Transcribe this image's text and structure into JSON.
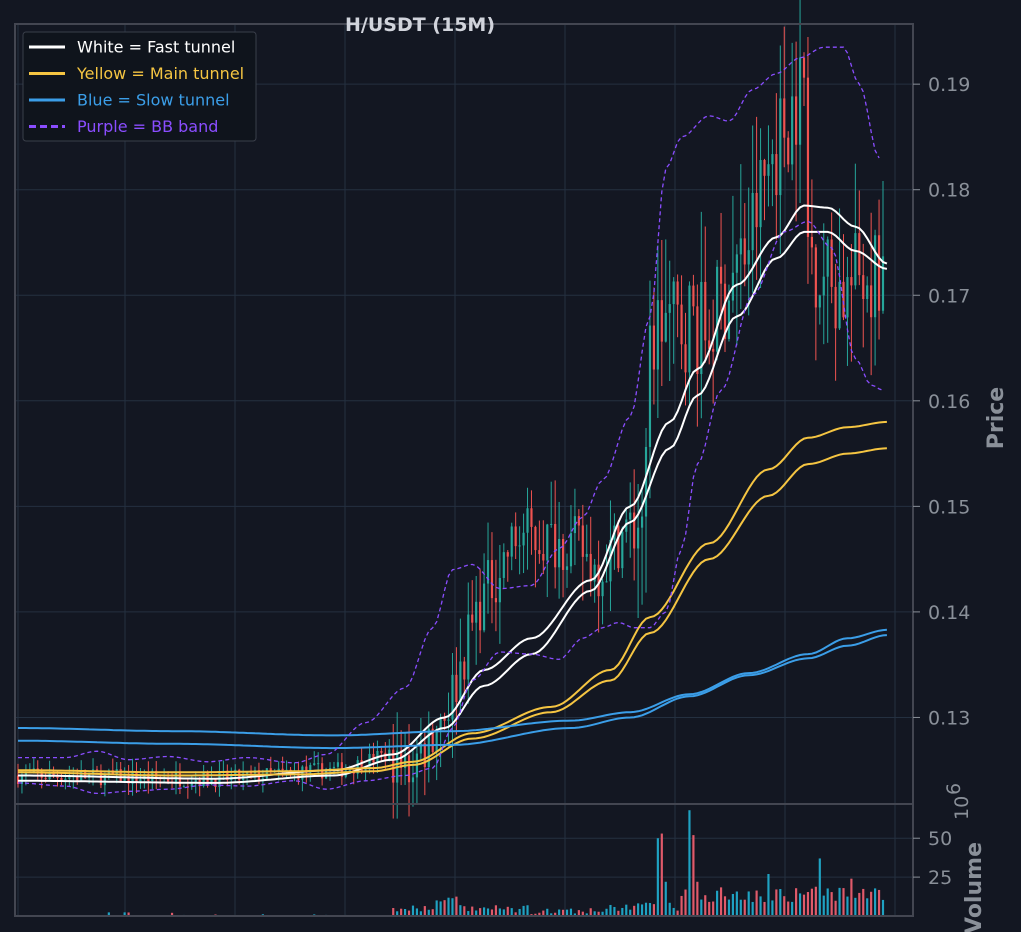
{
  "chart_data": {
    "type": "line",
    "title": "H/USDT (15M)",
    "price_panel": {
      "ylabel": "Price",
      "ylim": [
        0.1218,
        0.1957
      ],
      "yticks": [
        0.13,
        0.14,
        0.15,
        0.16,
        0.17,
        0.18,
        0.19
      ],
      "ytick_labels": [
        "0.13",
        "0.14",
        "0.15",
        "0.16",
        "0.17",
        "0.18",
        "0.19"
      ],
      "grid": true,
      "x_count": 220,
      "legend_position": "top-left",
      "series": [
        {
          "name": "White = Fast tunnel",
          "color": "#ffffff",
          "style": "solid",
          "knots": [
            [
              0,
              0.1245
            ],
            [
              50,
              0.1242
            ],
            [
              80,
              0.125
            ],
            [
              95,
              0.1265
            ],
            [
              108,
              0.13
            ],
            [
              118,
              0.1345
            ],
            [
              130,
              0.1375
            ],
            [
              145,
              0.143
            ],
            [
              155,
              0.15
            ],
            [
              165,
              0.158
            ],
            [
              172,
              0.163
            ],
            [
              182,
              0.171
            ],
            [
              192,
              0.1755
            ],
            [
              199,
              0.1785
            ],
            [
              205,
              0.1783
            ],
            [
              212,
              0.1765
            ],
            [
              220,
              0.173
            ]
          ]
        },
        {
          "name": "White = Fast tunnel",
          "color": "#ffffff",
          "style": "solid",
          "knots": [
            [
              0,
              0.124
            ],
            [
              50,
              0.1238
            ],
            [
              80,
              0.1245
            ],
            [
              95,
              0.126
            ],
            [
              108,
              0.129
            ],
            [
              118,
              0.133
            ],
            [
              130,
              0.136
            ],
            [
              145,
              0.142
            ],
            [
              155,
              0.1485
            ],
            [
              165,
              0.1555
            ],
            [
              172,
              0.1605
            ],
            [
              182,
              0.168
            ],
            [
              192,
              0.1735
            ],
            [
              199,
              0.176
            ],
            [
              205,
              0.176
            ],
            [
              212,
              0.1742
            ],
            [
              220,
              0.1725
            ]
          ]
        },
        {
          "name": "Yellow = Main tunnel",
          "color": "#f5c542",
          "style": "solid",
          "knots": [
            [
              0,
              0.125
            ],
            [
              40,
              0.1248
            ],
            [
              70,
              0.1249
            ],
            [
              90,
              0.1252
            ],
            [
              100,
              0.1258
            ],
            [
              115,
              0.1285
            ],
            [
              135,
              0.131
            ],
            [
              150,
              0.1345
            ],
            [
              160,
              0.1395
            ],
            [
              175,
              0.1465
            ],
            [
              190,
              0.1535
            ],
            [
              200,
              0.1565
            ],
            [
              210,
              0.1575
            ],
            [
              220,
              0.158
            ]
          ]
        },
        {
          "name": "Yellow = Main tunnel",
          "color": "#f5c542",
          "style": "solid",
          "knots": [
            [
              0,
              0.1248
            ],
            [
              40,
              0.1245
            ],
            [
              70,
              0.1246
            ],
            [
              90,
              0.1249
            ],
            [
              100,
              0.1255
            ],
            [
              115,
              0.128
            ],
            [
              135,
              0.1305
            ],
            [
              150,
              0.1335
            ],
            [
              160,
              0.138
            ],
            [
              175,
              0.145
            ],
            [
              190,
              0.151
            ],
            [
              200,
              0.154
            ],
            [
              210,
              0.155
            ],
            [
              220,
              0.1555
            ]
          ]
        },
        {
          "name": "Blue = Slow tunnel",
          "color": "#3b9ee8",
          "style": "solid",
          "knots": [
            [
              0,
              0.129
            ],
            [
              40,
              0.1287
            ],
            [
              80,
              0.1283
            ],
            [
              110,
              0.1287
            ],
            [
              140,
              0.1297
            ],
            [
              155,
              0.1305
            ],
            [
              170,
              0.1322
            ],
            [
              185,
              0.1342
            ],
            [
              200,
              0.136
            ],
            [
              210,
              0.1375
            ],
            [
              220,
              0.1383
            ]
          ]
        },
        {
          "name": "Blue = Slow tunnel",
          "color": "#3b9ee8",
          "style": "solid",
          "knots": [
            [
              0,
              0.1278
            ],
            [
              40,
              0.1275
            ],
            [
              80,
              0.1271
            ],
            [
              110,
              0.1274
            ],
            [
              140,
              0.129
            ],
            [
              155,
              0.13
            ],
            [
              170,
              0.132
            ],
            [
              185,
              0.134
            ],
            [
              200,
              0.1356
            ],
            [
              210,
              0.1368
            ],
            [
              220,
              0.1378
            ]
          ]
        },
        {
          "name": "Purple = BB band",
          "color": "#8a4dff",
          "style": "dashed",
          "knots": [
            [
              0,
              0.1262
            ],
            [
              12,
              0.1262
            ],
            [
              20,
              0.1268
            ],
            [
              28,
              0.126
            ],
            [
              38,
              0.1263
            ],
            [
              48,
              0.1258
            ],
            [
              58,
              0.1262
            ],
            [
              70,
              0.1257
            ],
            [
              78,
              0.1265
            ],
            [
              88,
              0.1295
            ],
            [
              98,
              0.1328
            ],
            [
              105,
              0.1385
            ],
            [
              110,
              0.144
            ],
            [
              115,
              0.1445
            ],
            [
              122,
              0.1422
            ],
            [
              130,
              0.1425
            ],
            [
              137,
              0.146
            ],
            [
              143,
              0.149
            ],
            [
              148,
              0.1525
            ],
            [
              155,
              0.1585
            ],
            [
              160,
              0.168
            ],
            [
              164,
              0.182
            ],
            [
              168,
              0.185
            ],
            [
              175,
              0.187
            ],
            [
              180,
              0.1865
            ],
            [
              186,
              0.1895
            ],
            [
              192,
              0.191
            ],
            [
              198,
              0.1925
            ],
            [
              204,
              0.1935
            ],
            [
              209,
              0.1935
            ],
            [
              213,
              0.19
            ],
            [
              218,
              0.183
            ]
          ]
        },
        {
          "name": "Purple = BB band",
          "color": "#8a4dff",
          "style": "dashed",
          "knots": [
            [
              0,
              0.1238
            ],
            [
              12,
              0.1235
            ],
            [
              20,
              0.1228
            ],
            [
              28,
              0.123
            ],
            [
              38,
              0.1232
            ],
            [
              48,
              0.1236
            ],
            [
              58,
              0.1235
            ],
            [
              70,
              0.124
            ],
            [
              78,
              0.1232
            ],
            [
              88,
              0.124
            ],
            [
              98,
              0.1245
            ],
            [
              105,
              0.1252
            ],
            [
              110,
              0.129
            ],
            [
              115,
              0.1335
            ],
            [
              122,
              0.1362
            ],
            [
              130,
              0.136
            ],
            [
              137,
              0.1355
            ],
            [
              143,
              0.1375
            ],
            [
              148,
              0.1385
            ],
            [
              152,
              0.139
            ],
            [
              156,
              0.1385
            ],
            [
              160,
              0.1385
            ],
            [
              164,
              0.14
            ],
            [
              168,
              0.146
            ],
            [
              172,
              0.154
            ],
            [
              178,
              0.161
            ],
            [
              186,
              0.17
            ],
            [
              194,
              0.176
            ],
            [
              200,
              0.177
            ],
            [
              206,
              0.1745
            ],
            [
              212,
              0.164
            ],
            [
              216,
              0.1615
            ],
            [
              219,
              0.161
            ]
          ]
        }
      ]
    },
    "candles": {
      "up_color": "#26a69a",
      "down_color": "#ef5350",
      "count": 220
    },
    "volume_panel": {
      "ylabel": "Volume",
      "exponent_label": "10",
      "exponent_power": "6",
      "ylim": [
        0,
        72
      ],
      "yticks": [
        25,
        50
      ],
      "ytick_labels": [
        "25",
        "50"
      ],
      "grid": true,
      "color": "#1fa2c2",
      "down_color": "#e05a6a"
    }
  },
  "legend": {
    "items": [
      {
        "label": "White = Fast tunnel",
        "color": "#ffffff",
        "style": "solid"
      },
      {
        "label": "Yellow = Main tunnel",
        "color": "#f5c542",
        "style": "solid"
      },
      {
        "label": "Blue = Slow tunnel",
        "color": "#3b9ee8",
        "style": "solid"
      },
      {
        "label": "Purple = BB band",
        "color": "#8a4dff",
        "style": "dashed"
      }
    ]
  },
  "colors": {
    "background": "#131722",
    "grid": "#243040",
    "axis": "#434651",
    "tick_text": "#8a9099"
  }
}
